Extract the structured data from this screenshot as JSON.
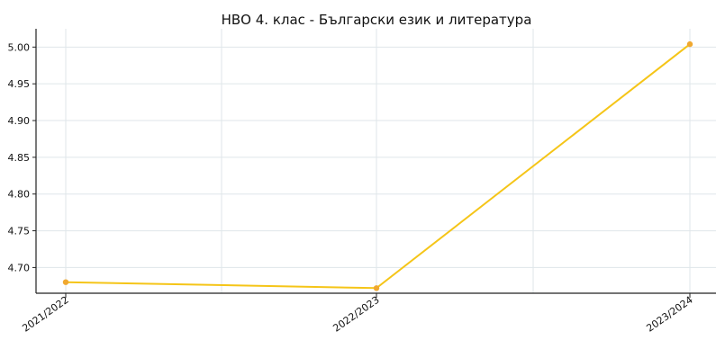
{
  "chart_data": {
    "type": "line",
    "title": "НВО 4. клас - Български език и литература",
    "xlabel": "",
    "ylabel": "",
    "categories": [
      "2021/2022",
      "2022/2023",
      "2023/2024"
    ],
    "series": [
      {
        "values": [
          4.68,
          4.672,
          5.004
        ],
        "color": "#f5c518"
      }
    ],
    "yticks": [
      "4.70",
      "4.75",
      "4.80",
      "4.85",
      "4.90",
      "4.95",
      "5.00"
    ],
    "ylim": [
      4.665,
      5.02
    ],
    "grid": true,
    "legend": "none",
    "marker_color": "#f0a830"
  }
}
